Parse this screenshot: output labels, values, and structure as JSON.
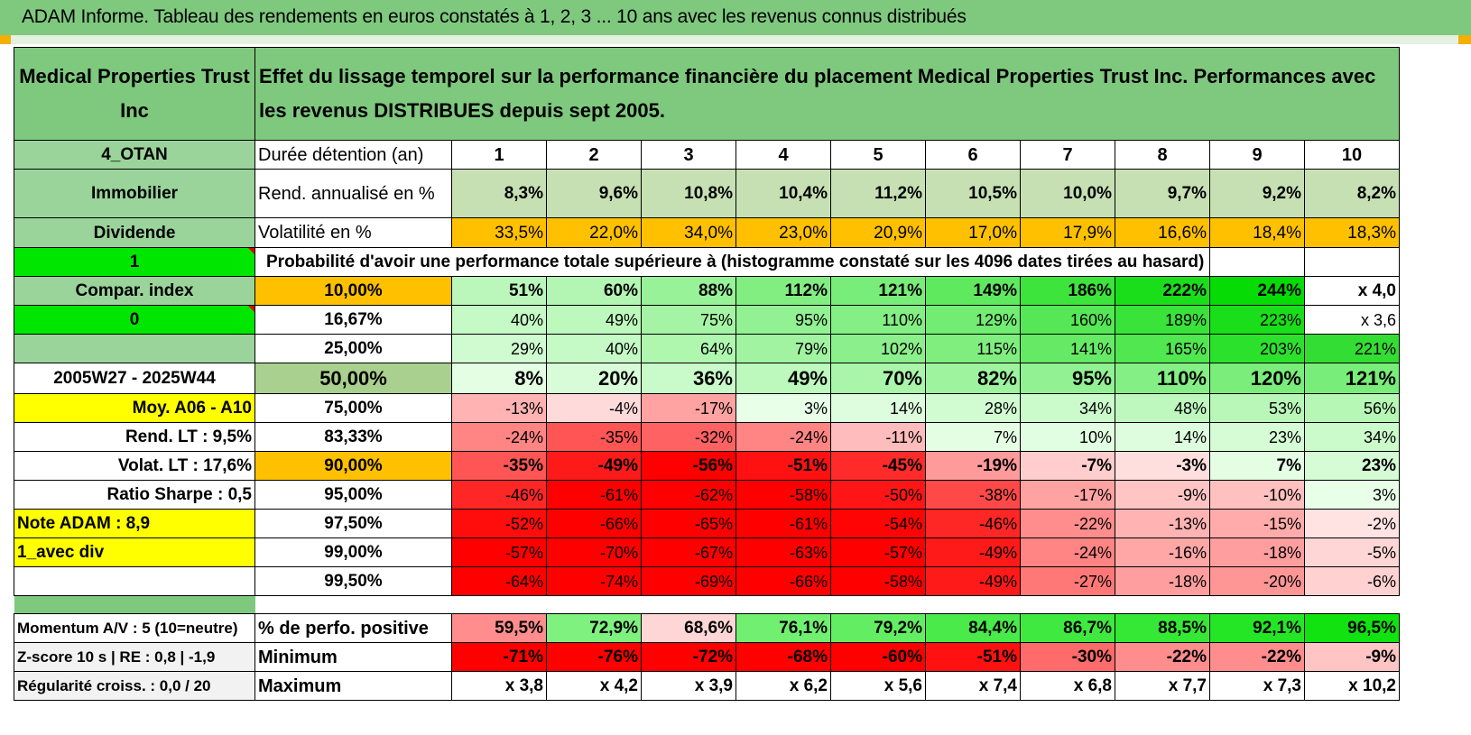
{
  "title": "ADAM Informe. Tableau des rendements en euros constatés à 1, 2, 3 ... 10 ans avec les revenus connus distribués",
  "colors": {
    "header_green": "#7fc97f",
    "lime": "#00e600",
    "yellow": "#ffff00",
    "orange": "#ffc000",
    "red_text": "#e00000"
  },
  "header": {
    "fund": "Medical Properties Trust Inc",
    "description": "Effet du lissage temporel sur la performance financière du placement Medical Properties Trust Inc. Performances avec les revenus DISTRIBUES depuis sept 2005."
  },
  "years": [
    "1",
    "2",
    "3",
    "4",
    "5",
    "6",
    "7",
    "8",
    "9",
    "10"
  ],
  "left": {
    "otan": "4_OTAN",
    "sector": "Immobilier",
    "type": "Dividende",
    "one": "1",
    "compar": "Compar. index",
    "zero": "0",
    "period": "2005W27 - 2025W44",
    "moy": "Moy. A06 - A10",
    "rend_lt": "Rend. LT :   9,5%",
    "volat_lt": "Volat. LT :   17,6%",
    "sharpe": "Ratio Sharpe :    0,5",
    "note": "Note ADAM : 8,9",
    "avec_div": "1_avec div"
  },
  "rows": {
    "duree_label": "Durée détention (an)",
    "rend_label": "Rend. annualisé en %",
    "rend": [
      "8,3%",
      "9,6%",
      "10,8%",
      "10,4%",
      "11,2%",
      "10,5%",
      "10,0%",
      "9,7%",
      "9,2%",
      "8,2%"
    ],
    "vol_label": "Volatilité en %",
    "vol": [
      "33,5%",
      "22,0%",
      "34,0%",
      "23,0%",
      "20,9%",
      "17,0%",
      "17,9%",
      "16,6%",
      "18,4%",
      "18,3%"
    ],
    "proba_label": "Probabilité d'avoir une performance totale supérieure à (histogramme constaté sur les 4096 dates tirées au hasard)"
  },
  "quantiles": [
    {
      "p": "10,00%",
      "vals": [
        "51%",
        "60%",
        "88%",
        "112%",
        "121%",
        "149%",
        "186%",
        "222%",
        "244%",
        "x 4,0"
      ]
    },
    {
      "p": "16,67%",
      "vals": [
        "40%",
        "49%",
        "75%",
        "95%",
        "110%",
        "129%",
        "160%",
        "189%",
        "223%",
        "x 3,6"
      ]
    },
    {
      "p": "25,00%",
      "vals": [
        "29%",
        "40%",
        "64%",
        "79%",
        "102%",
        "115%",
        "141%",
        "165%",
        "203%",
        "221%"
      ]
    },
    {
      "p": "50,00%",
      "vals": [
        "8%",
        "20%",
        "36%",
        "49%",
        "70%",
        "82%",
        "95%",
        "110%",
        "120%",
        "121%"
      ]
    },
    {
      "p": "75,00%",
      "vals": [
        "-13%",
        "-4%",
        "-17%",
        "3%",
        "14%",
        "28%",
        "34%",
        "48%",
        "53%",
        "56%"
      ]
    },
    {
      "p": "83,33%",
      "vals": [
        "-24%",
        "-35%",
        "-32%",
        "-24%",
        "-11%",
        "7%",
        "10%",
        "14%",
        "23%",
        "34%"
      ]
    },
    {
      "p": "90,00%",
      "vals": [
        "-35%",
        "-49%",
        "-56%",
        "-51%",
        "-45%",
        "-19%",
        "-7%",
        "-3%",
        "7%",
        "23%"
      ]
    },
    {
      "p": "95,00%",
      "vals": [
        "-46%",
        "-61%",
        "-62%",
        "-58%",
        "-50%",
        "-38%",
        "-17%",
        "-9%",
        "-10%",
        "3%"
      ]
    },
    {
      "p": "97,50%",
      "vals": [
        "-52%",
        "-66%",
        "-65%",
        "-61%",
        "-54%",
        "-46%",
        "-22%",
        "-13%",
        "-15%",
        "-2%"
      ]
    },
    {
      "p": "99,00%",
      "vals": [
        "-57%",
        "-70%",
        "-67%",
        "-63%",
        "-57%",
        "-49%",
        "-24%",
        "-16%",
        "-18%",
        "-5%"
      ]
    },
    {
      "p": "99,50%",
      "vals": [
        "-64%",
        "-74%",
        "-69%",
        "-66%",
        "-58%",
        "-49%",
        "-27%",
        "-18%",
        "-20%",
        "-6%"
      ]
    }
  ],
  "bottom": [
    {
      "left": "Momentum A/V : 5 (10=neutre)",
      "label": "% de perfo. positive",
      "vals": [
        "59,5%",
        "72,9%",
        "68,6%",
        "76,1%",
        "79,2%",
        "84,4%",
        "86,7%",
        "88,5%",
        "92,1%",
        "96,5%"
      ]
    },
    {
      "left": "Z-score 10 s | RE : 0,8 | -1,9",
      "label": "Minimum",
      "vals": [
        "-71%",
        "-76%",
        "-72%",
        "-68%",
        "-60%",
        "-51%",
        "-30%",
        "-22%",
        "-22%",
        "-9%"
      ]
    },
    {
      "left": "Régularité croiss. : 0,0 / 20",
      "label": "Maximum",
      "vals": [
        "x 3,8",
        "x 4,2",
        "x 3,9",
        "x 6,2",
        "x 5,6",
        "x 7,4",
        "x 6,8",
        "x 7,7",
        "x 7,3",
        "x 10,2"
      ]
    }
  ]
}
